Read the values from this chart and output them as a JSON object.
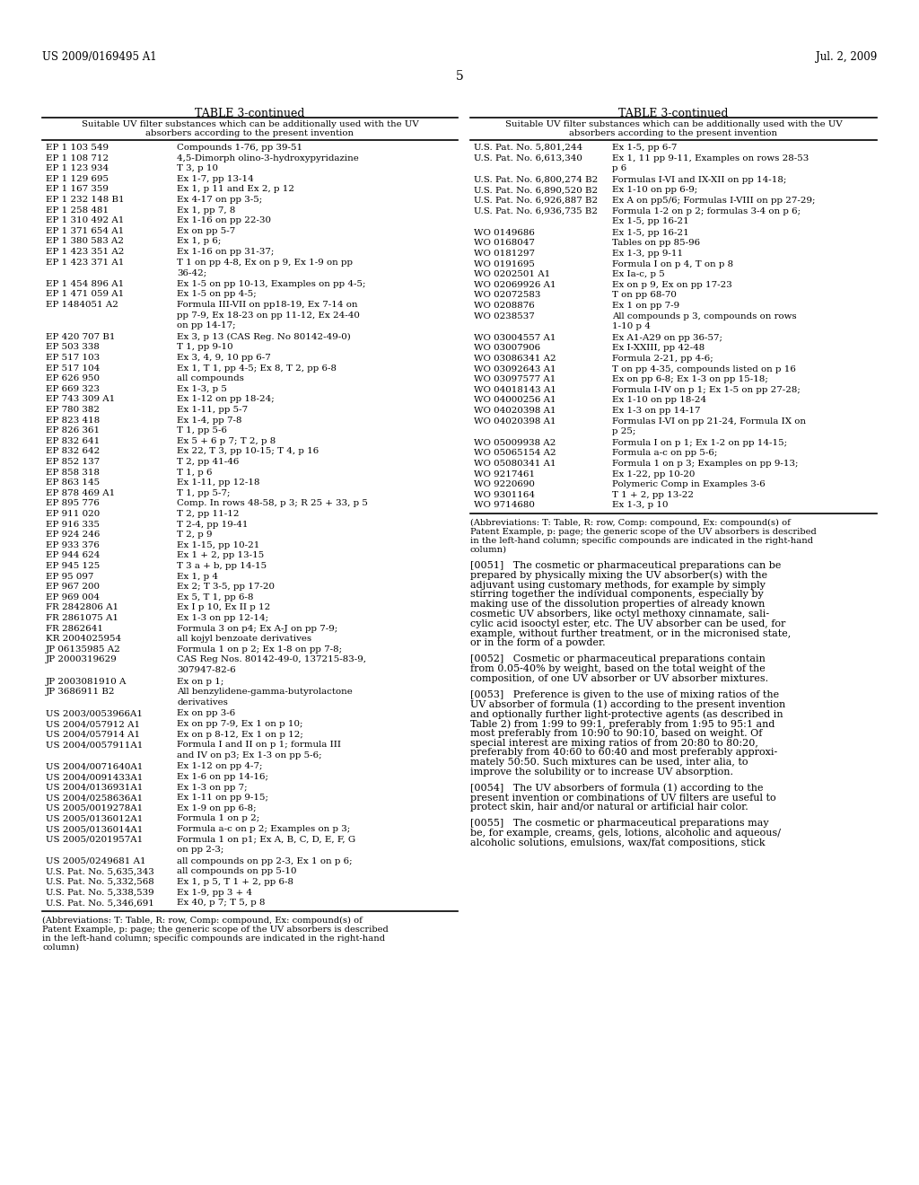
{
  "background_color": "#ffffff",
  "header_left": "US 2009/0169495 A1",
  "header_right": "Jul. 2, 2009",
  "page_number": "5",
  "table_title": "TABLE 3-continued",
  "table_subtitle": "Suitable UV filter substances which can be additionally used with the UV\nabsorbers according to the present invention",
  "left_col_data": [
    [
      "EP 1 103 549",
      "Compounds 1-76, pp 39-51"
    ],
    [
      "EP 1 108 712",
      "4,5-Dimorph olino-3-hydroxypyridazine"
    ],
    [
      "EP 1 123 934",
      "T 3, p 10"
    ],
    [
      "EP 1 129 695",
      "Ex 1-7, pp 13-14"
    ],
    [
      "EP 1 167 359",
      "Ex 1, p 11 and Ex 2, p 12"
    ],
    [
      "EP 1 232 148 B1",
      "Ex 4-17 on pp 3-5;"
    ],
    [
      "EP 1 258 481",
      "Ex 1, pp 7, 8"
    ],
    [
      "EP 1 310 492 A1",
      "Ex 1-16 on pp 22-30"
    ],
    [
      "EP 1 371 654 A1",
      "Ex on pp 5-7"
    ],
    [
      "EP 1 380 583 A2",
      "Ex 1, p 6;"
    ],
    [
      "EP 1 423 351 A2",
      "Ex 1-16 on pp 31-37;"
    ],
    [
      "EP 1 423 371 A1",
      "T 1 on pp 4-8, Ex on p 9, Ex 1-9 on pp\n36-42;"
    ],
    [
      "EP 1 454 896 A1",
      "Ex 1-5 on pp 10-13, Examples on pp 4-5;"
    ],
    [
      "EP 1 471 059 A1",
      "Ex 1-5 on pp 4-5;"
    ],
    [
      "EP 1484051 A2",
      "Formula III-VII on pp18-19, Ex 7-14 on\npp 7-9, Ex 18-23 on pp 11-12, Ex 24-40\non pp 14-17;"
    ],
    [
      "EP 420 707 B1",
      "Ex 3, p 13 (CAS Reg. No 80142-49-0)"
    ],
    [
      "EP 503 338",
      "T 1, pp 9-10"
    ],
    [
      "EP 517 103",
      "Ex 3, 4, 9, 10 pp 6-7"
    ],
    [
      "EP 517 104",
      "Ex 1, T 1, pp 4-5; Ex 8, T 2, pp 6-8"
    ],
    [
      "EP 626 950",
      "all compounds"
    ],
    [
      "EP 669 323",
      "Ex 1-3, p 5"
    ],
    [
      "EP 743 309 A1",
      "Ex 1-12 on pp 18-24;"
    ],
    [
      "EP 780 382",
      "Ex 1-11, pp 5-7"
    ],
    [
      "EP 823 418",
      "Ex 1-4, pp 7-8"
    ],
    [
      "EP 826 361",
      "T 1, pp 5-6"
    ],
    [
      "EP 832 641",
      "Ex 5 + 6 p 7; T 2, p 8"
    ],
    [
      "EP 832 642",
      "Ex 22, T 3, pp 10-15; T 4, p 16"
    ],
    [
      "EP 852 137",
      "T 2, pp 41-46"
    ],
    [
      "EP 858 318",
      "T 1, p 6"
    ],
    [
      "EP 863 145",
      "Ex 1-11, pp 12-18"
    ],
    [
      "EP 878 469 A1",
      "T 1, pp 5-7;"
    ],
    [
      "EP 895 776",
      "Comp. In rows 48-58, p 3; R 25 + 33, p 5"
    ],
    [
      "EP 911 020",
      "T 2, pp 11-12"
    ],
    [
      "EP 916 335",
      "T 2-4, pp 19-41"
    ],
    [
      "EP 924 246",
      "T 2, p 9"
    ],
    [
      "EP 933 376",
      "Ex 1-15, pp 10-21"
    ],
    [
      "EP 944 624",
      "Ex 1 + 2, pp 13-15"
    ],
    [
      "EP 945 125",
      "T 3 a + b, pp 14-15"
    ],
    [
      "EP 95 097",
      "Ex 1, p 4"
    ],
    [
      "EP 967 200",
      "Ex 2; T 3-5, pp 17-20"
    ],
    [
      "EP 969 004",
      "Ex 5, T 1, pp 6-8"
    ],
    [
      "FR 2842806 A1",
      "Ex I p 10, Ex II p 12"
    ],
    [
      "FR 2861075 A1",
      "Ex 1-3 on pp 12-14;"
    ],
    [
      "FR 2862641",
      "Formula 3 on p4; Ex A-J on pp 7-9;"
    ],
    [
      "KR 2004025954",
      "all kojyl benzoate derivatives"
    ],
    [
      "JP 06135985 A2",
      "Formula 1 on p 2; Ex 1-8 on pp 7-8;"
    ],
    [
      "JP 2000319629",
      "CAS Reg Nos. 80142-49-0, 137215-83-9,\n307947-82-6"
    ],
    [
      "JP 2003081910 A",
      "Ex on p 1;"
    ],
    [
      "JP 3686911 B2",
      "All benzylidene-gamma-butyrolactone\nderivatives"
    ],
    [
      "US 2003/0053966A1",
      "Ex on pp 3-6"
    ],
    [
      "US 2004/057912 A1",
      "Ex on pp 7-9, Ex 1 on p 10;"
    ],
    [
      "US 2004/057914 A1",
      "Ex on p 8-12, Ex 1 on p 12;"
    ],
    [
      "US 2004/0057911A1",
      "Formula I and II on p 1; formula III\nand IV on p3; Ex 1-3 on pp 5-6;"
    ],
    [
      "US 2004/0071640A1",
      "Ex 1-12 on pp 4-7;"
    ],
    [
      "US 2004/0091433A1",
      "Ex 1-6 on pp 14-16;"
    ],
    [
      "US 2004/0136931A1",
      "Ex 1-3 on pp 7;"
    ],
    [
      "US 2004/0258636A1",
      "Ex 1-11 on pp 9-15;"
    ],
    [
      "US 2005/0019278A1",
      "Ex 1-9 on pp 6-8;"
    ],
    [
      "US 2005/0136012A1",
      "Formula 1 on p 2;"
    ],
    [
      "US 2005/0136014A1",
      "Formula a-c on p 2; Examples on p 3;"
    ],
    [
      "US 2005/0201957A1",
      "Formula 1 on p1; Ex A, B, C, D, E, F, G\non pp 2-3;"
    ],
    [
      "US 2005/0249681 A1",
      "all compounds on pp 2-3, Ex 1 on p 6;"
    ],
    [
      "U.S. Pat. No. 5,635,343",
      "all compounds on pp 5-10"
    ],
    [
      "U.S. Pat. No. 5,332,568",
      "Ex 1, p 5, T 1 + 2, pp 6-8"
    ],
    [
      "U.S. Pat. No. 5,338,539",
      "Ex 1-9, pp 3 + 4"
    ],
    [
      "U.S. Pat. No. 5,346,691",
      "Ex 40, p 7; T 5, p 8"
    ]
  ],
  "right_col_data": [
    [
      "U.S. Pat. No. 5,801,244",
      "Ex 1-5, pp 6-7"
    ],
    [
      "U.S. Pat. No. 6,613,340",
      "Ex 1, 11 pp 9-11, Examples on rows 28-53\np 6"
    ],
    [
      "U.S. Pat. No. 6,800,274 B2",
      "Formulas I-VI and IX-XII on pp 14-18;"
    ],
    [
      "U.S. Pat. No. 6,890,520 B2",
      "Ex 1-10 on pp 6-9;"
    ],
    [
      "U.S. Pat. No. 6,926,887 B2",
      "Ex A on pp5/6; Formulas I-VIII on pp 27-29;"
    ],
    [
      "U.S. Pat. No. 6,936,735 B2",
      "Formula 1-2 on p 2; formulas 3-4 on p 6;\nEx 1-5, pp 16-21"
    ],
    [
      "WO 0149686",
      "Ex 1-5, pp 16-21"
    ],
    [
      "WO 0168047",
      "Tables on pp 85-96"
    ],
    [
      "WO 0181297",
      "Ex 1-3, pp 9-11"
    ],
    [
      "WO 0191695",
      "Formula I on p 4, T on p 8"
    ],
    [
      "WO 0202501 A1",
      "Ex Ia-c, p 5"
    ],
    [
      "WO 02069926 A1",
      "Ex on p 9, Ex on pp 17-23"
    ],
    [
      "WO 02072583",
      "T on pp 68-70"
    ],
    [
      "WO 0208876",
      "Ex 1 on pp 7-9"
    ],
    [
      "WO 0238537",
      "All compounds p 3, compounds on rows\n1-10 p 4"
    ],
    [
      "WO 03004557 A1",
      "Ex A1-A29 on pp 36-57;"
    ],
    [
      "WO 03007906",
      "Ex I-XXIII, pp 42-48"
    ],
    [
      "WO 03086341 A2",
      "Formula 2-21, pp 4-6;"
    ],
    [
      "WO 03092643 A1",
      "T on pp 4-35, compounds listed on p 16"
    ],
    [
      "WO 03097577 A1",
      "Ex on pp 6-8; Ex 1-3 on pp 15-18;"
    ],
    [
      "WO 04018143 A1",
      "Formula I-IV on p 1; Ex 1-5 on pp 27-28;"
    ],
    [
      "WO 04000256 A1",
      "Ex 1-10 on pp 18-24"
    ],
    [
      "WO 04020398 A1",
      "Ex 1-3 on pp 14-17"
    ],
    [
      "WO 04020398 A1",
      "Formulas I-VI on pp 21-24, Formula IX on\np 25;"
    ],
    [
      "WO 05009938 A2",
      "Formula I on p 1; Ex 1-2 on pp 14-15;"
    ],
    [
      "WO 05065154 A2",
      "Formula a-c on pp 5-6;"
    ],
    [
      "WO 05080341 A1",
      "Formula 1 on p 3; Examples on pp 9-13;"
    ],
    [
      "WO 9217461",
      "Ex 1-22, pp 10-20"
    ],
    [
      "WO 9220690",
      "Polymeric Comp in Examples 3-6"
    ],
    [
      "WO 9301164",
      "T 1 + 2, pp 13-22"
    ],
    [
      "WO 9714680",
      "Ex 1-3, p 10"
    ]
  ],
  "footnote": "(Abbreviations: T: Table, R: row, Comp: compound, Ex: compound(s) of\nPatent Example, p: page; the generic scope of the UV absorbers is described\nin the left-hand column; specific compounds are indicated in the right-hand\ncolumn)",
  "paragraph_0051": "[0051]   The cosmetic or pharmaceutical preparations can be\nprepared by physically mixing the UV absorber(s) with the\nadjuvant using customary methods, for example by simply\nstirring together the individual components, especially by\nmaking use of the dissolution properties of already known\ncosmetic UV absorbers, like octyl methoxy cinnamate, sali-\ncylic acid isooctyl ester, etc. The UV absorber can be used, for\nexample, without further treatment, or in the micronised state,\nor in the form of a powder.",
  "paragraph_0052": "[0052]   Cosmetic or pharmaceutical preparations contain\nfrom 0.05-40% by weight, based on the total weight of the\ncomposition, of one UV absorber or UV absorber mixtures.",
  "paragraph_0053": "[0053]   Preference is given to the use of mixing ratios of the\nUV absorber of formula (1) according to the present invention\nand optionally further light-protective agents (as described in\nTable 2) from 1:99 to 99:1, preferably from 1:95 to 95:1 and\nmost preferably from 10:90 to 90:10, based on weight. Of\nspecial interest are mixing ratios of from 20:80 to 80:20,\npreferably from 40:60 to 60:40 and most preferably approxi-\nmately 50:50. Such mixtures can be used, inter alia, to\nimprove the solubility or to increase UV absorption.",
  "paragraph_0054": "[0054]   The UV absorbers of formula (1) according to the\npresent invention or combinations of UV filters are useful to\nprotect skin, hair and/or natural or artificial hair color.",
  "paragraph_0055": "[0055]   The cosmetic or pharmaceutical preparations may\nbe, for example, creams, gels, lotions, alcoholic and aqueous/\nalcoholic solutions, emulsions, wax/fat compositions, stick"
}
